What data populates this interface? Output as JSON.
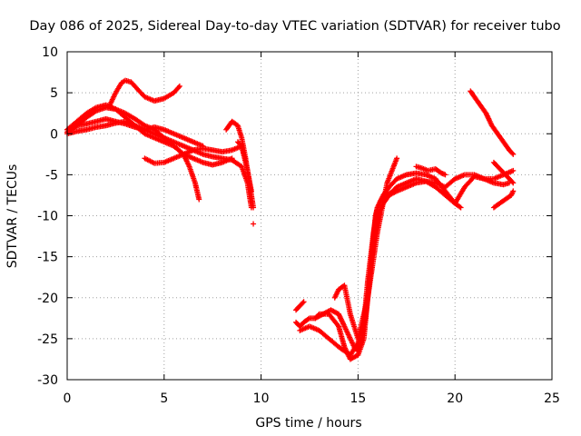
{
  "chart_data": {
    "type": "scatter",
    "title": "Day 086 of 2025, Sidereal Day-to-day VTEC variation (SDTVAR) for receiver tubo",
    "xlabel": "GPS time / hours",
    "ylabel": "SDTVAR / TECUs",
    "xlim": [
      0,
      25
    ],
    "ylim": [
      -30,
      10
    ],
    "xticks": [
      "0",
      "5",
      "10",
      "15",
      "20",
      "25"
    ],
    "yticks": [
      "10",
      "5",
      "0",
      "-5",
      "-10",
      "-15",
      "-20",
      "-25",
      "-30"
    ],
    "grid": true,
    "marker": "+",
    "color": "#ff0000",
    "series": [
      {
        "x": [
          0.0,
          0.5,
          1.0,
          1.5,
          2.0,
          2.5,
          3.0,
          3.5,
          4.0,
          4.5,
          5.0,
          5.5,
          6.0,
          6.5,
          7.0,
          7.5,
          8.0,
          8.5,
          9.0,
          9.3,
          9.5
        ],
        "y": [
          0.5,
          1.0,
          1.2,
          1.5,
          1.8,
          1.5,
          1.2,
          0.8,
          0.5,
          0.0,
          -0.5,
          -1.0,
          -1.5,
          -2.0,
          -2.5,
          -2.8,
          -3.0,
          -3.2,
          -4.0,
          -6.0,
          -9.0
        ]
      },
      {
        "x": [
          0.0,
          0.5,
          1.0,
          1.5,
          2.0,
          2.5,
          3.0,
          3.5,
          4.0,
          4.5,
          5.0,
          5.5,
          6.0,
          6.5,
          7.0,
          7.5,
          8.0,
          8.5
        ],
        "y": [
          0.2,
          1.0,
          2.0,
          2.8,
          3.2,
          3.0,
          2.5,
          1.8,
          1.0,
          0.5,
          -0.5,
          -1.5,
          -2.5,
          -3.0,
          -3.5,
          -3.8,
          -3.5,
          -3.0
        ]
      },
      {
        "x": [
          0.0,
          0.5,
          1.0,
          1.5,
          2.0,
          2.5,
          3.0,
          3.5,
          4.0,
          4.5,
          5.0,
          5.5,
          6.0,
          6.3,
          6.6,
          6.8
        ],
        "y": [
          0.5,
          1.5,
          2.5,
          3.2,
          3.5,
          3.0,
          2.0,
          1.0,
          0.0,
          -0.5,
          -1.0,
          -1.5,
          -2.5,
          -4.0,
          -6.0,
          -8.0
        ]
      },
      {
        "x": [
          0.0,
          0.5,
          1.0,
          1.5,
          2.0,
          2.5,
          3.0,
          3.5,
          4.0,
          4.5,
          5.0,
          5.5,
          6.0,
          6.5,
          7.0
        ],
        "y": [
          0.0,
          0.3,
          0.5,
          0.8,
          1.0,
          1.3,
          1.5,
          1.0,
          0.5,
          0.8,
          0.5,
          0.0,
          -0.5,
          -1.0,
          -1.5
        ]
      },
      {
        "x": [
          2.2,
          2.5,
          2.8,
          3.0,
          3.3,
          3.6,
          4.0,
          4.5,
          5.0,
          5.5,
          5.8
        ],
        "y": [
          3.5,
          5.0,
          6.2,
          6.5,
          6.3,
          5.5,
          4.5,
          4.0,
          4.3,
          5.0,
          5.8
        ]
      },
      {
        "x": [
          4.0,
          4.5,
          5.0,
          5.5,
          6.0,
          6.5,
          7.0,
          7.5,
          8.0,
          8.5,
          9.0
        ],
        "y": [
          -3.0,
          -3.6,
          -3.5,
          -3.0,
          -2.5,
          -2.0,
          -1.8,
          -2.0,
          -2.2,
          -2.0,
          -1.5
        ]
      },
      {
        "x": [
          8.2,
          8.5,
          8.8,
          9.0,
          9.2,
          9.4,
          9.6
        ],
        "y": [
          0.5,
          1.5,
          1.0,
          -0.5,
          -3.0,
          -6.0,
          -9.0
        ]
      },
      {
        "x": [
          8.8,
          9.0,
          9.1,
          9.3,
          9.5
        ],
        "y": [
          -1.0,
          -1.5,
          -2.5,
          -4.5,
          -7.0
        ]
      },
      {
        "x": [
          9.6
        ],
        "y": [
          -11.0
        ]
      },
      {
        "x": [
          11.8,
          12.0,
          12.2,
          12.5,
          12.8,
          13.0,
          13.5,
          14.0,
          14.3,
          14.6,
          15.0,
          15.3,
          15.5,
          15.7,
          15.9,
          16.0,
          16.2,
          16.5,
          16.8,
          17.0,
          17.5,
          18.0,
          18.5,
          19.0,
          19.5,
          20.0,
          20.5,
          21.0,
          21.5,
          22.0,
          22.5,
          22.8
        ],
        "y": [
          -23.0,
          -23.5,
          -23.0,
          -22.5,
          -22.5,
          -22.0,
          -22.0,
          -23.5,
          -26.0,
          -27.5,
          -27.0,
          -25.0,
          -20.0,
          -15.0,
          -10.0,
          -9.0,
          -8.0,
          -7.5,
          -7.0,
          -6.5,
          -6.0,
          -5.5,
          -5.8,
          -6.5,
          -7.5,
          -8.5,
          -6.5,
          -5.2,
          -5.5,
          -6.0,
          -6.2,
          -6.0
        ]
      },
      {
        "x": [
          12.0,
          12.5,
          13.0,
          13.5,
          14.0,
          14.3,
          14.6,
          15.0,
          15.3,
          15.5,
          15.8,
          16.0,
          16.3,
          16.6,
          17.0,
          17.5,
          18.0,
          18.5,
          19.0,
          19.5,
          20.0,
          20.3
        ],
        "y": [
          -24.0,
          -23.5,
          -24.0,
          -25.0,
          -26.0,
          -26.5,
          -27.0,
          -25.5,
          -23.0,
          -18.0,
          -12.0,
          -9.0,
          -7.5,
          -6.5,
          -5.5,
          -5.0,
          -4.8,
          -5.0,
          -5.5,
          -7.0,
          -8.5,
          -9.0
        ]
      },
      {
        "x": [
          12.8,
          13.2,
          13.6,
          14.0,
          14.4,
          14.8,
          15.0,
          15.2,
          15.4,
          15.6,
          15.8,
          16.0,
          16.3,
          16.6,
          17.0,
          17.5,
          18.0,
          18.5,
          19.0,
          19.5,
          20.0,
          20.5,
          21.0,
          21.5,
          22.0,
          22.5,
          23.0
        ],
        "y": [
          -22.5,
          -22.0,
          -21.5,
          -22.0,
          -24.0,
          -26.0,
          -26.5,
          -25.0,
          -22.0,
          -18.0,
          -13.0,
          -10.0,
          -8.5,
          -7.5,
          -7.0,
          -6.5,
          -6.0,
          -5.8,
          -6.0,
          -6.5,
          -5.5,
          -5.0,
          -5.0,
          -5.5,
          -5.5,
          -5.0,
          -4.5
        ]
      },
      {
        "x": [
          13.8,
          14.0,
          14.3,
          14.6,
          15.0,
          15.5,
          16.0,
          16.5,
          17.0
        ],
        "y": [
          -20.0,
          -19.0,
          -18.5,
          -22.0,
          -25.0,
          -20.0,
          -12.0,
          -6.0,
          -3.0
        ]
      },
      {
        "x": [
          11.8,
          12.0,
          12.2
        ],
        "y": [
          -21.5,
          -21.0,
          -20.5
        ]
      },
      {
        "x": [
          18.0,
          18.3,
          18.6,
          19.0,
          19.3,
          19.5
        ],
        "y": [
          -4.0,
          -4.2,
          -4.5,
          -4.3,
          -4.8,
          -5.0
        ]
      },
      {
        "x": [
          20.8,
          21.0,
          21.3,
          21.6,
          21.9,
          22.2,
          22.5,
          22.8,
          23.0
        ],
        "y": [
          5.2,
          4.5,
          3.5,
          2.5,
          1.0,
          0.0,
          -1.0,
          -2.0,
          -2.5
        ]
      },
      {
        "x": [
          22.0,
          22.3,
          22.6,
          22.9,
          23.0
        ],
        "y": [
          -9.0,
          -8.5,
          -8.0,
          -7.5,
          -7.0
        ]
      },
      {
        "x": [
          22.0,
          22.2,
          22.4,
          22.6,
          22.8,
          23.0
        ],
        "y": [
          -3.5,
          -4.0,
          -4.5,
          -5.0,
          -5.5,
          -6.0
        ]
      }
    ]
  }
}
